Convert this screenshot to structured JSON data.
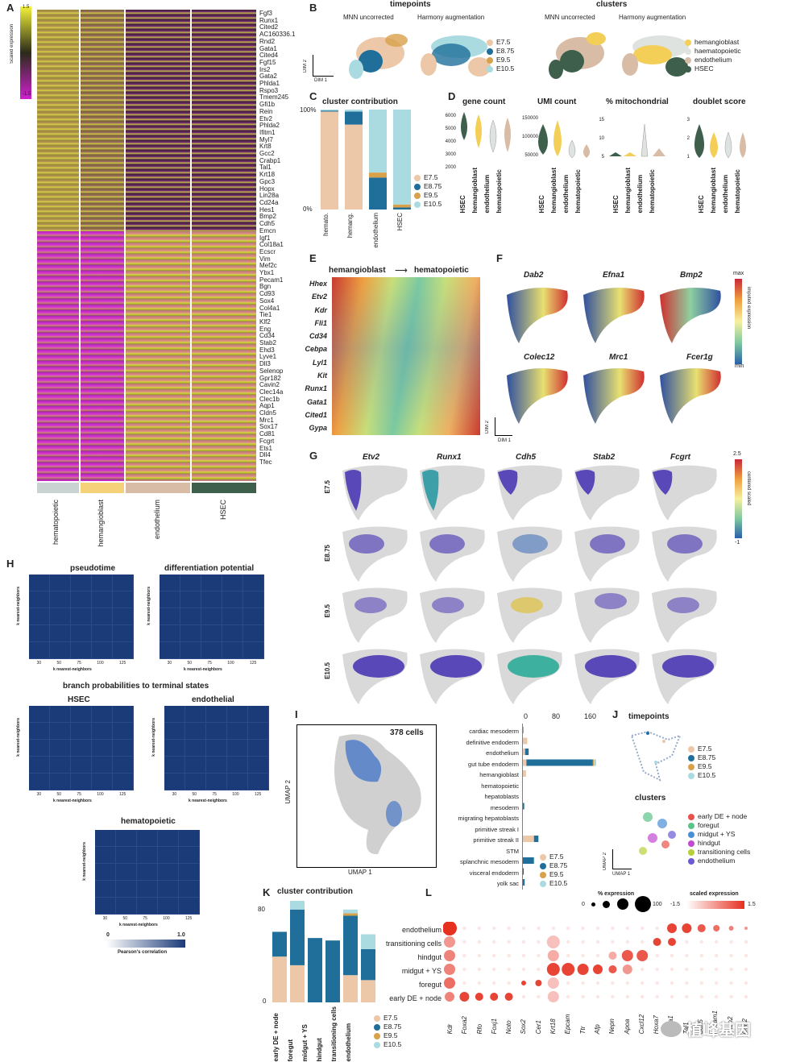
{
  "panel_letters": [
    "A",
    "B",
    "C",
    "D",
    "E",
    "F",
    "G",
    "H",
    "I",
    "J",
    "K",
    "L"
  ],
  "panelA": {
    "scale_title": "Scaled expression",
    "scale_max": "1.5",
    "scale_min": "-1.5",
    "genes": [
      "Fgf3",
      "Runx1",
      "Cited2",
      "AC160336.1",
      "Rnd2",
      "Gata1",
      "Cited4",
      "Fgf15",
      "Irs2",
      "Gata2",
      "Phlda1",
      "Rspo3",
      "Tmem245",
      "Gfi1b",
      "Rein",
      "Etv2",
      "Phlda2",
      "Ifitm1",
      "Myl7",
      "Krt8",
      "Gcc2",
      "Crabp1",
      "Tal1",
      "Krt18",
      "Gpc3",
      "Hopx",
      "Lin28a",
      "Cd24a",
      "Hes1",
      "Bmp2",
      "Cdh5",
      "Emcn",
      "Igf1",
      "Col18a1",
      "Ecscr",
      "Vim",
      "Mef2c",
      "Ybx1",
      "Pecam1",
      "Bgn",
      "Cd93",
      "Sox4",
      "Col4a1",
      "Tie1",
      "Klf2",
      "Eng",
      "Cd34",
      "Stab2",
      "Ehd3",
      "Lyve1",
      "Dll3",
      "Selenop",
      "Gpr182",
      "Cavin2",
      "Clec14a",
      "Clec1b",
      "Aqp1",
      "Cldn5",
      "Mrc1",
      "Sox17",
      "Cd81",
      "Fcgrt",
      "Ets1",
      "Dll4",
      "Tfec"
    ],
    "clusters": [
      "hematopoietic",
      "hemangioblast",
      "endothelium",
      "HSEC"
    ],
    "cluster_colors": [
      "#c9d3d2",
      "#f5d27a",
      "#d8bca6",
      "#3d5f4b"
    ]
  },
  "panelB": {
    "title_left": "timepoints",
    "title_right": "clusters",
    "sub_mnn": "MNN uncorrected",
    "sub_harmony": "Harmony augmentation",
    "dim2": "DIM 2",
    "dim1": "DIM 1",
    "timepoints": [
      {
        "name": "E7.5",
        "color": "#ecc8a8"
      },
      {
        "name": "E8.75",
        "color": "#1f6f9a"
      },
      {
        "name": "E9.5",
        "color": "#d8a14a"
      },
      {
        "name": "E10.5",
        "color": "#a9dbe0"
      }
    ],
    "clusters": [
      {
        "name": "hemangioblast",
        "color": "#f4cf58"
      },
      {
        "name": "haematopoietic",
        "color": "#dfe3e0"
      },
      {
        "name": "endothelium",
        "color": "#d8bca6"
      },
      {
        "name": "HSEC",
        "color": "#3d5f4b"
      }
    ]
  },
  "panelC": {
    "title": "cluster contribution",
    "y_top": "100%",
    "y_bottom": "0%",
    "x_labels": [
      "hemato.",
      "hemang.",
      "endothelium",
      "HSEC"
    ],
    "legend": [
      "E7.5",
      "E8.75",
      "E9.5",
      "E10.5"
    ],
    "chart_data": {
      "type": "bar",
      "stacked": true,
      "categories": [
        "hemato.",
        "hemang.",
        "endothelium",
        "HSEC"
      ],
      "series": [
        {
          "name": "E7.5",
          "values": [
            98,
            85,
            0,
            0
          ]
        },
        {
          "name": "E8.75",
          "values": [
            1,
            13,
            32,
            2
          ]
        },
        {
          "name": "E9.5",
          "values": [
            0,
            0,
            5,
            3
          ]
        },
        {
          "name": "E10.5",
          "values": [
            1,
            2,
            63,
            95
          ]
        }
      ],
      "ylim": [
        0,
        100
      ]
    }
  },
  "panelD": {
    "titles": [
      "gene count",
      "UMI count",
      "% mitochondrial",
      "doublet score"
    ],
    "gene_ticks": [
      "6000",
      "5000",
      "4000",
      "3000",
      "2000"
    ],
    "umi_ticks": [
      "150000",
      "100000",
      "50000"
    ],
    "mito_ticks": [
      "15",
      "10",
      "5"
    ],
    "doublet_ticks": [
      "3",
      "2",
      "1"
    ],
    "groups": [
      "HSEC",
      "hemangioblast",
      "endothelium",
      "hematopoietic"
    ],
    "group_colors": [
      "#3d5f4b",
      "#f4cf58",
      "#dfe3e0",
      "#d8bca6"
    ]
  },
  "panelE": {
    "title_left": "hemangioblast",
    "title_right": "hematopoietic",
    "genes": [
      "Hhex",
      "Etv2",
      "Kdr",
      "Fli1",
      "Cd34",
      "Cebpa",
      "Lyl1",
      "Kit",
      "Runx1",
      "Gata1",
      "Cited1",
      "Gypa"
    ]
  },
  "panelF": {
    "genes": [
      "Dab2",
      "Efna1",
      "Bmp2",
      "Colec12",
      "Mrc1",
      "Fcer1g"
    ],
    "scale_max": "max",
    "scale_min": "min",
    "scale_title": "imputed expression",
    "dim2": "DIM 2",
    "dim1": "DIM 1"
  },
  "panelG": {
    "genes": [
      "Etv2",
      "Runx1",
      "Cdh5",
      "Stab2",
      "Fcgrt"
    ],
    "timepoints": [
      "E7.5",
      "E8.75",
      "E9.5",
      "E10.5"
    ],
    "scale_max": "2.5",
    "scale_min": "-1",
    "scale_title": "centered scaled"
  },
  "panelH": {
    "title1": "pseudotime",
    "title2": "differentiation potential",
    "subtitle": "branch probabilities to terminal states",
    "title3": "HSEC",
    "title4": "endothelial",
    "title5": "hematopoietic",
    "axis_label": "k nearest-neighbors",
    "ticks": [
      "30",
      "50",
      "75",
      "100",
      "125"
    ],
    "colorbar_min": "0",
    "colorbar_max": "1.0",
    "colorbar_title": "Pearson's correlation"
  },
  "panelI": {
    "cells": "378 cells",
    "umap1": "UMAP 1",
    "umap2": "UMAP 2",
    "x_ticks": [
      "0",
      "80",
      "160"
    ],
    "legend": [
      "E7.5",
      "E8.75",
      "E9.5",
      "E10.5"
    ],
    "chart_data": {
      "type": "bar",
      "orientation": "horizontal",
      "categories": [
        "cardiac mesoderm",
        "definitive endoderm",
        "endothelium",
        "gut tube endoderm",
        "hemangioblast",
        "hematopoietic",
        "hepatoblasts",
        "mesoderm",
        "migrating hepatoblasts",
        "primitive streak I",
        "primitive streak II",
        "STM",
        "splanchnic mesoderm",
        "visceral endoderm",
        "yolk sac"
      ],
      "series": [
        {
          "name": "E7.5",
          "values": [
            0,
            10,
            5,
            8,
            7,
            0,
            0,
            0,
            0,
            0,
            25,
            0,
            0,
            0,
            0
          ]
        },
        {
          "name": "E8.75",
          "values": [
            1,
            0,
            8,
            150,
            0,
            0,
            0,
            3,
            0,
            0,
            10,
            0,
            25,
            2,
            4
          ]
        },
        {
          "name": "E9.5",
          "values": [
            0,
            0,
            0,
            2,
            0,
            0,
            0,
            0,
            0,
            0,
            0,
            0,
            0,
            0,
            0
          ]
        },
        {
          "name": "E10.5",
          "values": [
            0,
            0,
            0,
            6,
            0,
            0,
            0,
            1,
            0,
            0,
            1,
            0,
            1,
            0,
            0
          ]
        }
      ],
      "xlim": [
        0,
        160
      ]
    }
  },
  "panelJ": {
    "title1": "timepoints",
    "title2": "clusters",
    "timepoints": [
      "E7.5",
      "E8.75",
      "E9.5",
      "E10.5"
    ],
    "clusters": [
      {
        "name": "early DE + node",
        "color": "#e8524a"
      },
      {
        "name": "foregut",
        "color": "#5cc48a"
      },
      {
        "name": "midgut + YS",
        "color": "#4a8fd6"
      },
      {
        "name": "hindgut",
        "color": "#c24ad0"
      },
      {
        "name": "transitioning cells",
        "color": "#b5d13a"
      },
      {
        "name": "endothelium",
        "color": "#6a5ad6"
      }
    ],
    "umap1": "UMAP 1",
    "umap2": "UMAP 2"
  },
  "panelK": {
    "title": "cluster contribution",
    "y_top": "80",
    "y_bottom": "0",
    "legend": [
      "E7.5",
      "E8.75",
      "E9.5",
      "E10.5"
    ],
    "chart_data": {
      "type": "bar",
      "stacked": true,
      "categories": [
        "early DE + node",
        "foregut",
        "midgut + YS",
        "hindgut",
        "transitioning cells",
        "endothelium"
      ],
      "series": [
        {
          "name": "E7.5",
          "values": [
            37,
            30,
            0,
            0,
            22,
            18
          ]
        },
        {
          "name": "E8.75",
          "values": [
            20,
            45,
            52,
            50,
            48,
            25
          ]
        },
        {
          "name": "E9.5",
          "values": [
            0,
            0,
            0,
            0,
            2,
            0
          ]
        },
        {
          "name": "E10.5",
          "values": [
            0,
            7,
            0,
            0,
            3,
            12
          ]
        }
      ],
      "ylim": [
        0,
        80
      ]
    }
  },
  "panelL": {
    "pct_title": "% expression",
    "pct_ticks": [
      "0",
      "100"
    ],
    "scaled_title": "scaled expression",
    "scaled_min": "-1.5",
    "scaled_max": "1.5",
    "rows": [
      "endothelium",
      "transitioning cells",
      "hindgut",
      "midgut + YS",
      "foregut",
      "early DE + node"
    ],
    "genes": [
      "Kdr",
      "Foxa2",
      "Rfo",
      "Foxj1",
      "Noto",
      "Sox2",
      "Cer1",
      "Krt18",
      "Epcam",
      "Ttr",
      "Afp",
      "Nepn",
      "Apoa",
      "Cxcl12",
      "Hoxa7",
      "Hoxa1",
      "Tal1",
      "Sox5",
      "Pecam1",
      "Icam2",
      "Cdh2"
    ]
  },
  "watermark": "植峰基因"
}
